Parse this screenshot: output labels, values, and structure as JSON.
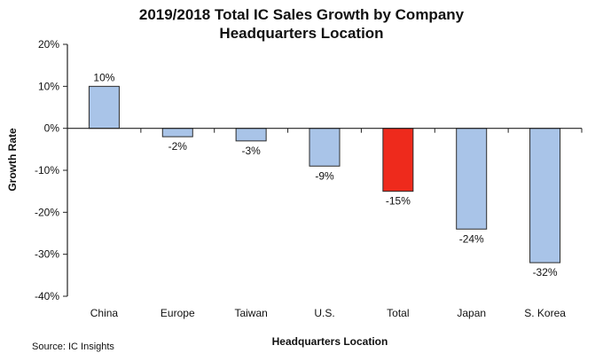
{
  "chart_data": {
    "type": "bar",
    "title_lines": [
      "2019/2018 Total IC Sales Growth by Company",
      "Headquarters Location"
    ],
    "xlabel": "Headquarters Location",
    "ylabel": "Growth Rate",
    "categories": [
      "China",
      "Europe",
      "Taiwan",
      "U.S.",
      "Total",
      "Japan",
      "S. Korea"
    ],
    "values": [
      10,
      -2,
      -3,
      -9,
      -15,
      -24,
      -32
    ],
    "data_labels": [
      "10%",
      "-2%",
      "-3%",
      "-9%",
      "-15%",
      "-24%",
      "-32%"
    ],
    "ylim": [
      -40,
      20
    ],
    "y_ticks": [
      20,
      10,
      0,
      -10,
      -20,
      -30,
      -40
    ],
    "y_tick_labels": [
      "20%",
      "10%",
      "0%",
      "-10%",
      "-20%",
      "-30%",
      "-40%"
    ],
    "grid": false,
    "legend": "none",
    "colors": {
      "default_bar": "#a9c4e8",
      "highlight_bar": "#ee2a1c",
      "bar_outline": "#2b2b2b",
      "axis": "#222222"
    },
    "highlight_category": "Total"
  },
  "source": "Source: IC Insights"
}
